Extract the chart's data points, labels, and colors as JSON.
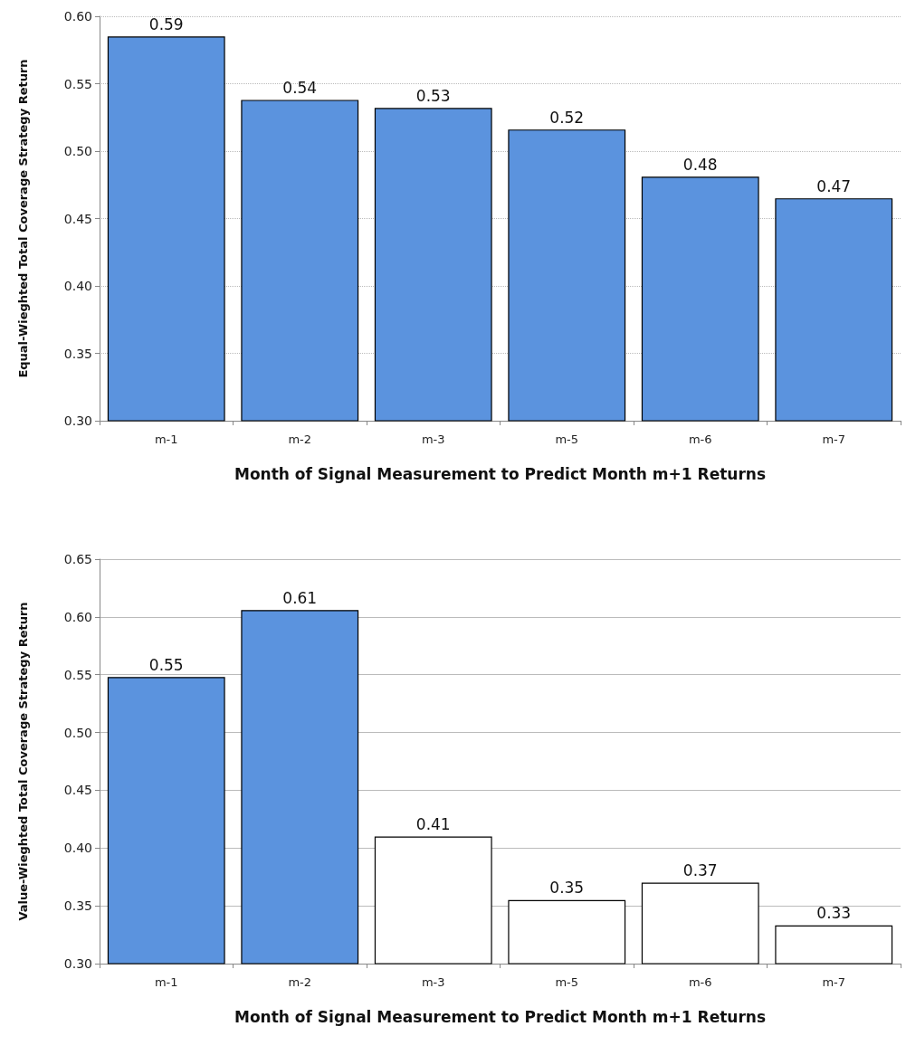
{
  "chart_data": [
    {
      "type": "bar",
      "categories": [
        "m-1",
        "m-2",
        "m-3",
        "m-5",
        "m-6",
        "m-7"
      ],
      "values": [
        0.585,
        0.538,
        0.532,
        0.516,
        0.481,
        0.465
      ],
      "value_labels": [
        "0.59",
        "0.54",
        "0.53",
        "0.52",
        "0.48",
        "0.47"
      ],
      "colors": [
        "#5b93de",
        "#5b93de",
        "#5b93de",
        "#5b93de",
        "#5b93de",
        "#5b93de"
      ],
      "xlabel": "Month of Signal Measurement to Predict Month m+1 Returns",
      "ylabel": "Equal-Wieghted Total Coverage Strategy Return",
      "ylim": [
        0.3,
        0.6
      ],
      "yticks": [
        {
          "value": 0.3,
          "label": "0.30"
        },
        {
          "value": 0.35,
          "label": "0.35"
        },
        {
          "value": 0.4,
          "label": "0.40"
        },
        {
          "value": 0.45,
          "label": "0.45"
        },
        {
          "value": 0.5,
          "label": "0.50"
        },
        {
          "value": 0.55,
          "label": "0.55"
        },
        {
          "value": 0.6,
          "label": "0.60"
        }
      ],
      "grid": "y",
      "line_style": "dotted"
    },
    {
      "type": "bar",
      "categories": [
        "m-1",
        "m-2",
        "m-3",
        "m-5",
        "m-6",
        "m-7"
      ],
      "values": [
        0.548,
        0.606,
        0.41,
        0.355,
        0.37,
        0.333
      ],
      "value_labels": [
        "0.55",
        "0.61",
        "0.41",
        "0.35",
        "0.37",
        "0.33"
      ],
      "colors": [
        "#5b93de",
        "#5b93de",
        "#ffffff",
        "#ffffff",
        "#ffffff",
        "#ffffff"
      ],
      "xlabel": "Month of Signal Measurement to Predict Month m+1 Returns",
      "ylabel": "Value-Wieghted Total Coverage Strategy Return",
      "ylim": [
        0.3,
        0.65
      ],
      "yticks": [
        {
          "value": 0.3,
          "label": "0.30"
        },
        {
          "value": 0.35,
          "label": "0.35"
        },
        {
          "value": 0.4,
          "label": "0.40"
        },
        {
          "value": 0.45,
          "label": "0.45"
        },
        {
          "value": 0.5,
          "label": "0.50"
        },
        {
          "value": 0.55,
          "label": "0.55"
        },
        {
          "value": 0.6,
          "label": "0.60"
        },
        {
          "value": 0.65,
          "label": "0.65"
        }
      ],
      "grid": "y",
      "line_style": "solid"
    }
  ]
}
